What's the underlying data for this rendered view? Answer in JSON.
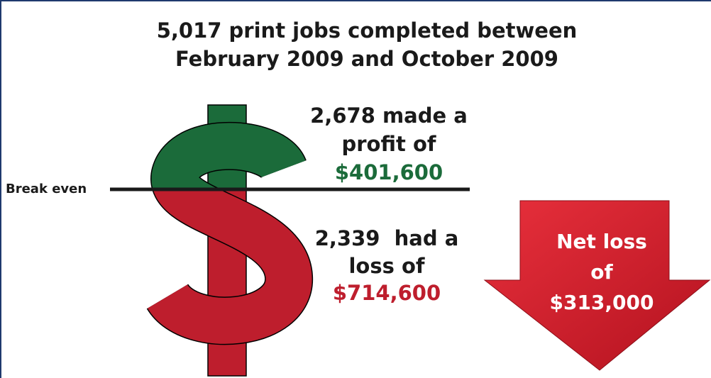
{
  "title": [
    "5,017 print jobs completed between",
    "February 2009 and October 2009"
  ],
  "break_even": "Break even",
  "profit": {
    "lines": [
      "2,678 made a",
      "profit of"
    ],
    "amount": "$401,600"
  },
  "loss": {
    "lines": [
      "2,339  had a",
      "loss of"
    ],
    "amount": "$714,600"
  },
  "net": {
    "lines": [
      "Net loss",
      "of"
    ],
    "amount": "$313,000"
  }
}
